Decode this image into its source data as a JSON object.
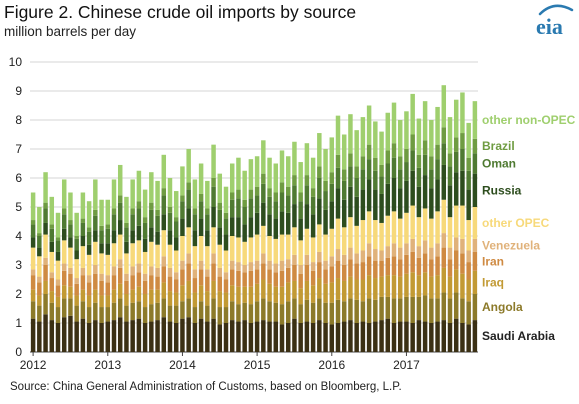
{
  "header": {
    "title": "Figure 2. Chinese crude oil imports by source",
    "subtitle": "million barrels per day",
    "logo_text": "eia"
  },
  "footer": {
    "source": "Source: China General Administration of Customs, based on Bloomberg, L.P."
  },
  "colors": {
    "logo_blue": "#2a7ab0",
    "grid": "#d4d4d4"
  },
  "chart_data": {
    "type": "bar",
    "stacked": true,
    "title": "Figure 2. Chinese crude oil imports by source",
    "subtitle": "million barrels per day",
    "xlabel": "",
    "ylabel": "",
    "ylim": [
      0,
      10
    ],
    "yticks": [
      0,
      1,
      2,
      3,
      4,
      5,
      6,
      7,
      8,
      9,
      10
    ],
    "x_tick_labels": [
      "2012",
      "2013",
      "2014",
      "2015",
      "2016",
      "2017"
    ],
    "grid": true,
    "legend_position": "right",
    "categories": [
      "2012-01",
      "2012-02",
      "2012-03",
      "2012-04",
      "2012-05",
      "2012-06",
      "2012-07",
      "2012-08",
      "2012-09",
      "2012-10",
      "2012-11",
      "2012-12",
      "2013-01",
      "2013-02",
      "2013-03",
      "2013-04",
      "2013-05",
      "2013-06",
      "2013-07",
      "2013-08",
      "2013-09",
      "2013-10",
      "2013-11",
      "2013-12",
      "2014-01",
      "2014-02",
      "2014-03",
      "2014-04",
      "2014-05",
      "2014-06",
      "2014-07",
      "2014-08",
      "2014-09",
      "2014-10",
      "2014-11",
      "2014-12",
      "2015-01",
      "2015-02",
      "2015-03",
      "2015-04",
      "2015-05",
      "2015-06",
      "2015-07",
      "2015-08",
      "2015-09",
      "2015-10",
      "2015-11",
      "2015-12",
      "2016-01",
      "2016-02",
      "2016-03",
      "2016-04",
      "2016-05",
      "2016-06",
      "2016-07",
      "2016-08",
      "2016-09",
      "2016-10",
      "2016-11",
      "2016-12",
      "2017-01",
      "2017-02",
      "2017-03",
      "2017-04",
      "2017-05",
      "2017-06",
      "2017-07",
      "2017-08",
      "2017-09",
      "2017-10",
      "2017-11",
      "2017-12"
    ],
    "series": [
      {
        "name": "Saudi Arabia",
        "color": "#3b3014",
        "values": [
          1.15,
          1.05,
          1.3,
          1.1,
          1.0,
          1.2,
          1.25,
          1.05,
          1.15,
          1.0,
          1.1,
          1.0,
          1.05,
          1.1,
          1.2,
          1.05,
          1.1,
          1.15,
          1.0,
          1.05,
          1.1,
          1.2,
          1.05,
          1.0,
          1.15,
          1.2,
          1.0,
          1.15,
          1.05,
          1.15,
          0.95,
          1.0,
          1.1,
          1.05,
          1.1,
          1.0,
          1.05,
          1.1,
          1.05,
          1.05,
          0.95,
          1.0,
          1.15,
          1.0,
          1.05,
          1.0,
          1.1,
          1.0,
          0.95,
          1.0,
          1.05,
          1.1,
          1.0,
          1.05,
          1.0,
          1.05,
          1.1,
          1.15,
          1.0,
          1.05,
          1.05,
          1.0,
          1.1,
          1.05,
          1.0,
          1.05,
          1.1,
          1.0,
          1.15,
          1.0,
          0.95,
          1.1
        ]
      },
      {
        "name": "Angola",
        "color": "#8c7a2a",
        "values": [
          0.6,
          0.55,
          0.7,
          0.6,
          0.55,
          0.65,
          0.6,
          0.55,
          0.6,
          0.55,
          0.6,
          0.55,
          0.5,
          0.6,
          0.65,
          0.55,
          0.6,
          0.6,
          0.55,
          0.6,
          0.6,
          0.65,
          0.55,
          0.6,
          0.6,
          0.65,
          0.55,
          0.6,
          0.55,
          0.7,
          0.6,
          0.55,
          0.65,
          0.6,
          0.6,
          0.65,
          0.7,
          0.75,
          0.7,
          0.65,
          0.7,
          0.75,
          0.7,
          0.65,
          0.75,
          0.7,
          0.75,
          0.7,
          0.75,
          0.8,
          0.7,
          0.75,
          0.8,
          0.7,
          0.85,
          0.75,
          0.8,
          0.75,
          0.85,
          0.8,
          0.85,
          0.9,
          0.8,
          0.9,
          0.85,
          0.8,
          0.95,
          0.85,
          0.9,
          0.85,
          0.8,
          0.9
        ]
      },
      {
        "name": "Iraq",
        "color": "#c29a34",
        "values": [
          0.4,
          0.35,
          0.45,
          0.4,
          0.35,
          0.45,
          0.4,
          0.35,
          0.4,
          0.4,
          0.45,
          0.4,
          0.4,
          0.45,
          0.5,
          0.4,
          0.45,
          0.5,
          0.45,
          0.5,
          0.45,
          0.55,
          0.5,
          0.45,
          0.55,
          0.6,
          0.5,
          0.55,
          0.5,
          0.6,
          0.55,
          0.5,
          0.55,
          0.6,
          0.55,
          0.6,
          0.6,
          0.65,
          0.6,
          0.55,
          0.6,
          0.65,
          0.6,
          0.55,
          0.65,
          0.6,
          0.7,
          0.65,
          0.7,
          0.75,
          0.7,
          0.75,
          0.7,
          0.75,
          0.8,
          0.75,
          0.7,
          0.75,
          0.8,
          0.75,
          0.8,
          0.85,
          0.75,
          0.8,
          0.75,
          0.8,
          0.85,
          0.75,
          0.8,
          0.85,
          0.75,
          0.8
        ]
      },
      {
        "name": "Iran",
        "color": "#cf8a42",
        "values": [
          0.5,
          0.45,
          0.55,
          0.45,
          0.4,
          0.5,
          0.45,
          0.4,
          0.5,
          0.45,
          0.55,
          0.5,
          0.45,
          0.5,
          0.55,
          0.45,
          0.5,
          0.5,
          0.45,
          0.5,
          0.45,
          0.55,
          0.5,
          0.45,
          0.55,
          0.6,
          0.5,
          0.55,
          0.5,
          0.6,
          0.5,
          0.45,
          0.55,
          0.55,
          0.5,
          0.55,
          0.5,
          0.55,
          0.5,
          0.5,
          0.55,
          0.5,
          0.55,
          0.5,
          0.55,
          0.5,
          0.55,
          0.5,
          0.55,
          0.6,
          0.55,
          0.6,
          0.55,
          0.6,
          0.65,
          0.6,
          0.55,
          0.6,
          0.65,
          0.6,
          0.65,
          0.7,
          0.6,
          0.65,
          0.6,
          0.65,
          0.7,
          0.6,
          0.65,
          0.7,
          0.6,
          0.65
        ]
      },
      {
        "name": "Venezuela",
        "color": "#e0b27a",
        "values": [
          0.2,
          0.2,
          0.25,
          0.2,
          0.2,
          0.25,
          0.2,
          0.2,
          0.25,
          0.25,
          0.3,
          0.25,
          0.25,
          0.3,
          0.3,
          0.25,
          0.3,
          0.3,
          0.25,
          0.3,
          0.3,
          0.35,
          0.3,
          0.25,
          0.3,
          0.35,
          0.3,
          0.3,
          0.25,
          0.35,
          0.3,
          0.25,
          0.3,
          0.3,
          0.25,
          0.3,
          0.3,
          0.35,
          0.3,
          0.3,
          0.35,
          0.3,
          0.35,
          0.3,
          0.35,
          0.3,
          0.35,
          0.3,
          0.35,
          0.4,
          0.35,
          0.4,
          0.35,
          0.4,
          0.45,
          0.4,
          0.35,
          0.4,
          0.45,
          0.4,
          0.4,
          0.45,
          0.4,
          0.45,
          0.4,
          0.45,
          0.5,
          0.4,
          0.45,
          0.5,
          0.4,
          0.45
        ]
      },
      {
        "name": "other OPEC",
        "color": "#f7d97a",
        "values": [
          0.75,
          0.7,
          0.8,
          0.7,
          0.65,
          0.8,
          0.7,
          0.65,
          0.75,
          0.7,
          0.8,
          0.7,
          0.7,
          0.8,
          0.85,
          0.7,
          0.8,
          0.8,
          0.75,
          0.85,
          0.8,
          0.9,
          0.8,
          0.75,
          0.85,
          0.9,
          0.8,
          0.85,
          0.8,
          0.9,
          0.8,
          0.75,
          0.85,
          0.85,
          0.8,
          0.85,
          0.9,
          0.95,
          0.85,
          0.85,
          0.9,
          0.85,
          0.95,
          0.85,
          0.9,
          0.85,
          0.95,
          0.9,
          0.95,
          1.05,
          0.95,
          1.05,
          0.95,
          1.05,
          1.1,
          1.0,
          0.95,
          1.05,
          1.1,
          1.0,
          1.05,
          1.15,
          1.0,
          1.1,
          1.0,
          1.1,
          1.15,
          1.05,
          1.1,
          1.15,
          1.05,
          1.1
        ]
      },
      {
        "name": "Russia",
        "color": "#2d4d1e",
        "values": [
          0.35,
          0.3,
          0.4,
          0.35,
          0.3,
          0.4,
          0.35,
          0.3,
          0.35,
          0.35,
          0.4,
          0.35,
          0.4,
          0.45,
          0.5,
          0.4,
          0.45,
          0.5,
          0.45,
          0.5,
          0.45,
          0.55,
          0.5,
          0.45,
          0.6,
          0.65,
          0.55,
          0.6,
          0.55,
          0.7,
          0.6,
          0.55,
          0.65,
          0.7,
          0.6,
          0.7,
          0.75,
          0.8,
          0.75,
          0.7,
          0.8,
          0.75,
          0.8,
          0.75,
          0.85,
          0.8,
          0.9,
          0.85,
          0.95,
          1.05,
          0.95,
          1.05,
          1.0,
          1.05,
          1.1,
          1.05,
          1.0,
          1.1,
          1.15,
          1.05,
          1.1,
          1.2,
          1.05,
          1.15,
          1.05,
          1.1,
          1.2,
          1.1,
          1.15,
          1.2,
          1.05,
          1.15
        ]
      },
      {
        "name": "Oman",
        "color": "#4f7a32",
        "values": [
          0.45,
          0.4,
          0.5,
          0.45,
          0.4,
          0.5,
          0.45,
          0.4,
          0.45,
          0.45,
          0.5,
          0.45,
          0.5,
          0.55,
          0.6,
          0.5,
          0.55,
          0.6,
          0.55,
          0.6,
          0.55,
          0.65,
          0.6,
          0.55,
          0.6,
          0.65,
          0.55,
          0.6,
          0.55,
          0.7,
          0.6,
          0.55,
          0.6,
          0.65,
          0.6,
          0.65,
          0.6,
          0.65,
          0.6,
          0.6,
          0.65,
          0.6,
          0.65,
          0.6,
          0.65,
          0.6,
          0.7,
          0.65,
          0.6,
          0.7,
          0.65,
          0.7,
          0.65,
          0.7,
          0.7,
          0.65,
          0.6,
          0.7,
          0.7,
          0.65,
          0.65,
          0.7,
          0.65,
          0.7,
          0.65,
          0.7,
          0.75,
          0.65,
          0.7,
          0.75,
          0.65,
          0.7
        ]
      },
      {
        "name": "Brazil",
        "color": "#6f9c42",
        "values": [
          0.15,
          0.1,
          0.2,
          0.15,
          0.1,
          0.2,
          0.15,
          0.1,
          0.15,
          0.15,
          0.2,
          0.15,
          0.15,
          0.2,
          0.25,
          0.15,
          0.2,
          0.25,
          0.2,
          0.25,
          0.2,
          0.25,
          0.2,
          0.15,
          0.2,
          0.25,
          0.2,
          0.25,
          0.2,
          0.3,
          0.25,
          0.2,
          0.25,
          0.3,
          0.25,
          0.3,
          0.3,
          0.35,
          0.3,
          0.3,
          0.35,
          0.3,
          0.35,
          0.3,
          0.35,
          0.3,
          0.4,
          0.35,
          0.4,
          0.45,
          0.4,
          0.45,
          0.4,
          0.45,
          0.5,
          0.45,
          0.4,
          0.45,
          0.5,
          0.45,
          0.45,
          0.55,
          0.45,
          0.5,
          0.45,
          0.5,
          0.55,
          0.45,
          0.5,
          0.55,
          0.45,
          0.5
        ]
      },
      {
        "name": "other non-OPEC",
        "color": "#9fcf6e",
        "values": [
          0.95,
          0.9,
          1.05,
          0.95,
          0.85,
          1.0,
          0.95,
          0.8,
          0.9,
          0.9,
          1.05,
          0.9,
          0.85,
          1.0,
          1.05,
          0.9,
          1.0,
          1.05,
          0.95,
          1.05,
          1.0,
          1.15,
          1.0,
          0.9,
          1.0,
          1.15,
          1.0,
          1.05,
          0.95,
          1.15,
          1.0,
          0.9,
          1.0,
          1.1,
          1.0,
          1.05,
          1.05,
          1.15,
          1.05,
          1.0,
          1.1,
          1.05,
          1.15,
          1.05,
          1.1,
          1.05,
          1.15,
          1.1,
          1.2,
          1.35,
          1.2,
          1.35,
          1.25,
          1.35,
          1.35,
          1.25,
          1.15,
          1.3,
          1.4,
          1.25,
          1.3,
          1.4,
          1.25,
          1.35,
          1.25,
          1.3,
          1.45,
          1.25,
          1.3,
          1.4,
          1.2,
          1.3
        ]
      }
    ]
  }
}
